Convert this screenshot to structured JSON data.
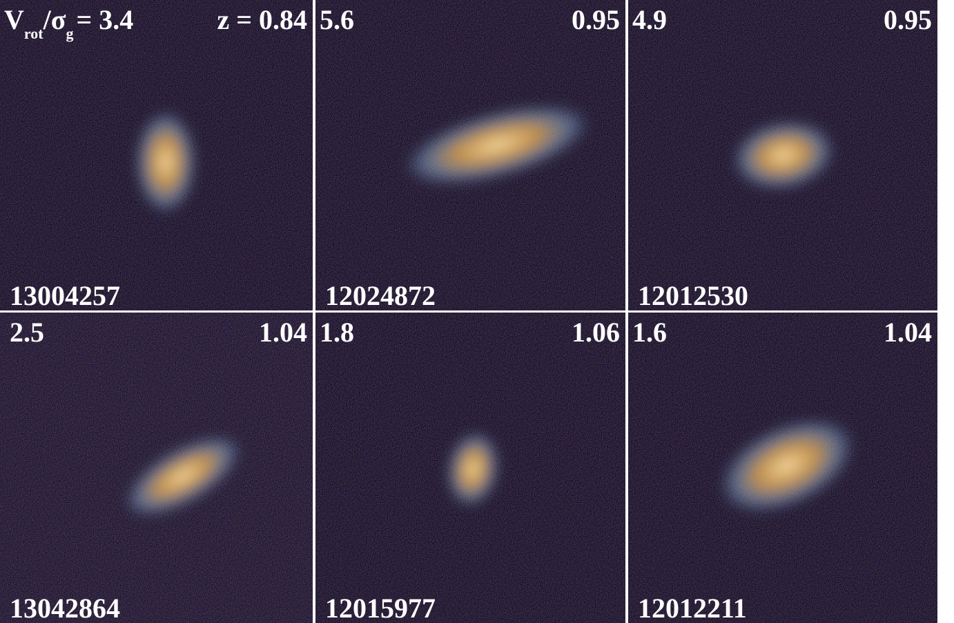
{
  "panels": [
    {
      "prefix": [
        "V",
        "rot",
        "/σ",
        "g"
      ],
      "ratio": "= 3.4",
      "z": "z = 0.84",
      "id": "13004257"
    },
    {
      "ratio": "5.6",
      "z": "0.95",
      "id": "12024872"
    },
    {
      "ratio": "4.9",
      "z": "0.95",
      "id": "12012530"
    },
    {
      "ratio": "2.5",
      "z": "1.04",
      "id": "13042864"
    },
    {
      "ratio": "1.8",
      "z": "1.06",
      "id": "12015977"
    },
    {
      "ratio": "1.6",
      "z": "1.04",
      "id": "12012211"
    }
  ]
}
